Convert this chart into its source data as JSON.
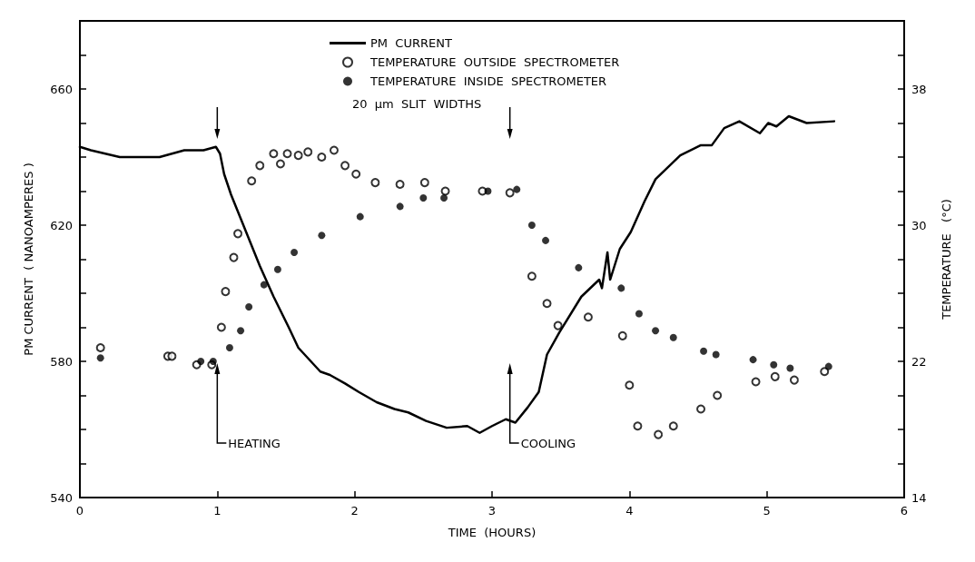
{
  "chart_data": {
    "type": "line",
    "xlabel": "TIME  (HOURS)",
    "ylabel": "PM CURRENT  ( NANOAMPERES )",
    "y2label": "TEMPERATURE   (°C)",
    "xlim": [
      0,
      6
    ],
    "xticks": [
      0,
      1,
      2,
      3,
      4,
      5,
      6
    ],
    "ylim": [
      540,
      680
    ],
    "yticks": [
      540,
      {
        "value": 550,
        "label": null
      },
      {
        "value": 560,
        "label": null
      },
      {
        "value": 570,
        "label": null
      },
      580,
      {
        "value": 590,
        "label": null
      },
      {
        "value": 600,
        "label": null
      },
      {
        "value": 610,
        "label": null
      },
      620,
      {
        "value": 630,
        "label": null
      },
      {
        "value": 640,
        "label": null
      },
      {
        "value": 650,
        "label": null
      },
      660,
      {
        "value": 670,
        "label": null
      }
    ],
    "y2lim": [
      14,
      42
    ],
    "y2ticks": [
      14,
      {
        "value": 16,
        "label": null
      },
      {
        "value": 18,
        "label": null
      },
      {
        "value": 20,
        "label": null
      },
      22,
      {
        "value": 24,
        "label": null
      },
      {
        "value": 26,
        "label": null
      },
      {
        "value": 28,
        "label": null
      },
      30,
      {
        "value": 32,
        "label": null
      },
      {
        "value": 34,
        "label": null
      },
      {
        "value": 36,
        "label": null
      },
      38,
      {
        "value": 40,
        "label": null
      }
    ],
    "grid": false,
    "legend": "top",
    "line_style": "solid",
    "series": [
      {
        "name": "PM  CURRENT",
        "marker": "none",
        "color": "#000000",
        "x": [
          0,
          0.08,
          0.29,
          0.46,
          0.58,
          0.76,
          0.9,
          0.99,
          1.02,
          1.05,
          1.1,
          1.18,
          1.31,
          1.41,
          1.52,
          1.59,
          1.75,
          1.82,
          1.93,
          2.03,
          2.16,
          2.29,
          2.39,
          2.52,
          2.67,
          2.82,
          2.91,
          3.0,
          3.1,
          3.17,
          3.26,
          3.34,
          3.4,
          3.49,
          3.65,
          3.78,
          3.8,
          3.84,
          3.86,
          3.93,
          4.01,
          4.11,
          4.19,
          4.37,
          4.52,
          4.6,
          4.69,
          4.8,
          4.95,
          5.01,
          5.07,
          5.16,
          5.29,
          5.49
        ],
        "values": [
          643,
          642,
          640,
          640,
          640,
          642,
          642,
          643,
          641,
          635,
          629,
          621,
          608,
          599,
          590,
          584,
          577,
          576,
          573.5,
          571,
          568,
          566,
          565,
          562.5,
          560.5,
          561,
          559,
          561,
          563,
          562,
          566.5,
          571,
          582,
          588.5,
          599,
          604,
          601.5,
          612,
          604,
          613,
          618,
          627,
          633.5,
          640.5,
          643.5,
          643.5,
          648.5,
          650.5,
          647,
          650,
          649,
          652,
          650,
          650.5
        ]
      },
      {
        "name": "TEMPERATURE  OUTSIDE  SPECTROMETER",
        "type": "scatter",
        "axis": "y2",
        "marker": "circle",
        "color": "#000000",
        "x": [
          0.15,
          0.64,
          0.67,
          0.85,
          0.96,
          1.03,
          1.06,
          1.12,
          1.15,
          1.25,
          1.31,
          1.41,
          1.46,
          1.51,
          1.59,
          1.66,
          1.76,
          1.85,
          1.93,
          2.01,
          2.15,
          2.33,
          2.51,
          2.66,
          2.93,
          3.13,
          3.29,
          3.4,
          3.48,
          3.7,
          3.95,
          4.0,
          4.06,
          4.21,
          4.32,
          4.52,
          4.64,
          4.92,
          5.06,
          5.2,
          5.42
        ],
        "values": [
          22.8,
          22.3,
          22.3,
          21.8,
          21.8,
          24.0,
          26.1,
          28.1,
          29.5,
          32.6,
          33.5,
          34.2,
          33.6,
          34.2,
          34.1,
          34.3,
          34.0,
          34.4,
          33.5,
          33.0,
          32.5,
          32.4,
          32.5,
          32.0,
          32.0,
          31.9,
          27.0,
          25.4,
          24.1,
          24.6,
          23.5,
          20.6,
          18.2,
          17.7,
          18.2,
          19.2,
          20.0,
          20.8,
          21.1,
          20.9,
          21.4
        ]
      },
      {
        "name": "TEMPERATURE  INSIDE  SPECTROMETER",
        "type": "scatter",
        "axis": "y2",
        "marker": "circle",
        "color": "#000000",
        "x": [
          0.15,
          0.88,
          0.97,
          1.09,
          1.17,
          1.23,
          1.34,
          1.44,
          1.56,
          1.76,
          2.04,
          2.33,
          2.5,
          2.65,
          2.97,
          3.18,
          3.29,
          3.39,
          3.63,
          3.94,
          4.07,
          4.19,
          4.32,
          4.54,
          4.63,
          4.9,
          5.05,
          5.17,
          5.45
        ],
        "values": [
          22.2,
          22.0,
          22.0,
          22.8,
          23.8,
          25.2,
          26.5,
          27.4,
          28.4,
          29.4,
          30.5,
          31.1,
          31.6,
          31.6,
          32.0,
          32.1,
          30.0,
          29.1,
          27.5,
          26.3,
          24.8,
          23.8,
          23.4,
          22.6,
          22.4,
          22.1,
          21.8,
          21.6,
          21.7
        ]
      }
    ],
    "ref_lines": [
      {
        "axis": "x",
        "value": 1,
        "label": "HEATING"
      },
      {
        "axis": "x",
        "value": 3.13,
        "label": "COOLING"
      }
    ],
    "annotations": [
      "20  µm  SLIT  WIDTHS"
    ]
  }
}
